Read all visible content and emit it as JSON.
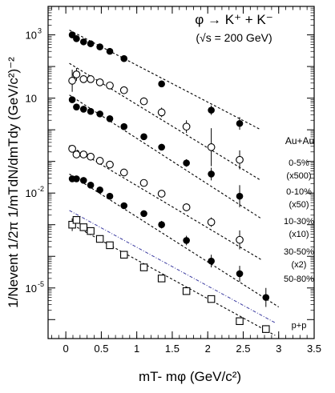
{
  "chart_data": {
    "type": "scatter",
    "title": "φ → K⁺ + K⁻",
    "subtitle": "(√s = 200 GeV)",
    "xlabel": "mT- mφ (GeV/c²)",
    "ylabel": "1/Nevent 1/2π 1/mTdN/dmTdy (GeV/c²)⁻²",
    "xlim": [
      -0.25,
      3.5
    ],
    "ylim_log10": [
      -6.6,
      3.9
    ],
    "yscale": "log",
    "grid": false,
    "x_ticks": [
      "0",
      "0.5",
      "1",
      "1.5",
      "2",
      "2.5",
      "3",
      "3.5"
    ],
    "y_ticks": [
      {
        "base": "10",
        "exp": "3",
        "log10": 3
      },
      {
        "base": "10",
        "exp": "",
        "log10": 1
      },
      {
        "base": "10",
        "exp": "-2",
        "log10": -2
      },
      {
        "base": "10",
        "exp": "-5",
        "log10": -5
      }
    ],
    "legend_header": "Au+Au",
    "series": [
      {
        "name": "0-5%",
        "scale": "(x500)",
        "marker": "filled-circle",
        "fit_color": "#000000",
        "x": [
          0.09,
          0.15,
          0.25,
          0.35,
          0.48,
          0.62,
          0.82,
          1.35,
          2.05,
          2.45
        ],
        "log10_y": [
          3.0,
          2.88,
          2.78,
          2.72,
          2.62,
          2.48,
          2.25,
          1.45,
          0.62,
          0.2
        ],
        "log10_err": [
          0.05,
          0.05,
          0.05,
          0.05,
          0.05,
          0.05,
          0.06,
          0.1,
          0.15,
          0.2
        ],
        "fit_log10": [
          3.15,
          0.0
        ],
        "fit_x": [
          0.05,
          2.75
        ]
      },
      {
        "name": "0-10%",
        "scale": "(x50)",
        "marker": "open-circle",
        "fit_color": "#000000",
        "x": [
          0.09,
          0.15,
          0.25,
          0.35,
          0.48,
          0.62,
          0.82,
          1.1,
          1.35,
          1.7,
          2.05,
          2.45
        ],
        "log10_y": [
          1.55,
          1.75,
          1.6,
          1.6,
          1.5,
          1.4,
          1.25,
          0.9,
          0.55,
          0.1,
          -0.55,
          -0.95
        ],
        "log10_err": [
          0.35,
          0.2,
          0.12,
          0.1,
          0.1,
          0.1,
          0.1,
          0.12,
          0.15,
          0.2,
          0.6,
          0.3
        ],
        "fit_log10": [
          2.1,
          -1.6
        ],
        "fit_x": [
          0.05,
          2.75
        ]
      },
      {
        "name": "10-30%",
        "scale": "(x10)",
        "marker": "filled-circle",
        "fit_color": "#000000",
        "x": [
          0.09,
          0.15,
          0.25,
          0.35,
          0.48,
          0.62,
          0.82,
          1.1,
          1.35,
          1.7,
          2.05,
          2.45
        ],
        "log10_y": [
          0.95,
          0.72,
          0.65,
          0.58,
          0.5,
          0.35,
          0.1,
          -0.22,
          -0.55,
          -1.05,
          -1.4,
          -2.1
        ],
        "log10_err": [
          0.08,
          0.06,
          0.06,
          0.06,
          0.06,
          0.06,
          0.07,
          0.08,
          0.1,
          0.12,
          0.2,
          0.35
        ],
        "fit_log10": [
          1.1,
          -2.8
        ],
        "fit_x": [
          0.05,
          2.75
        ]
      },
      {
        "name": "30-50%",
        "scale": "(x2)",
        "marker": "open-circle",
        "fit_color": "#000000",
        "x": [
          0.09,
          0.15,
          0.25,
          0.35,
          0.48,
          0.62,
          0.82,
          1.1,
          1.35,
          1.7,
          2.05,
          2.45
        ],
        "log10_y": [
          -0.6,
          -0.78,
          -0.78,
          -0.85,
          -0.98,
          -1.1,
          -1.35,
          -1.68,
          -2.02,
          -2.45,
          -2.92,
          -3.48
        ],
        "log10_err": [
          0.1,
          0.08,
          0.08,
          0.08,
          0.08,
          0.08,
          0.08,
          0.1,
          0.1,
          0.12,
          0.15,
          0.3
        ],
        "fit_log10": [
          -0.5,
          -4.1
        ],
        "fit_x": [
          0.05,
          2.75
        ]
      },
      {
        "name": "50-80%",
        "scale": "",
        "marker": "filled-circle",
        "fit_color": "#000000",
        "x": [
          0.09,
          0.15,
          0.25,
          0.35,
          0.48,
          0.62,
          0.82,
          1.1,
          1.35,
          1.7,
          2.05,
          2.45,
          2.82
        ],
        "log10_y": [
          -1.55,
          -1.55,
          -1.6,
          -1.75,
          -1.9,
          -2.1,
          -2.4,
          -2.65,
          -3.0,
          -3.5,
          -4.15,
          -4.55,
          -5.3
        ],
        "log10_err": [
          0.08,
          0.08,
          0.08,
          0.08,
          0.08,
          0.08,
          0.08,
          0.1,
          0.12,
          0.15,
          0.2,
          0.25,
          0.3
        ],
        "fit_log10": [
          -1.4,
          -5.6
        ],
        "fit_x": [
          0.05,
          3.0
        ]
      },
      {
        "name": "p+p",
        "scale": "",
        "marker": "open-square",
        "fit_color": "#000000",
        "x": [
          0.09,
          0.15,
          0.25,
          0.35,
          0.48,
          0.62,
          0.82,
          1.1,
          1.35,
          1.7,
          2.05,
          2.45,
          2.82
        ],
        "log10_y": [
          -3.0,
          -2.85,
          -3.08,
          -3.2,
          -3.45,
          -3.65,
          -3.95,
          -4.35,
          -4.7,
          -5.1,
          -5.35,
          -6.05,
          -6.3
        ],
        "log10_err": [
          0.2,
          0.1,
          0.08,
          0.08,
          0.08,
          0.08,
          0.08,
          0.08,
          0.08,
          0.08,
          0.1,
          0.1,
          0.12
        ],
        "fit_log10": [
          -2.95,
          -6.5
        ],
        "fit_x": [
          0.05,
          2.95
        ],
        "fit2_color": "#3a3aa0",
        "fit2_log10": [
          -2.55,
          -6.1
        ],
        "fit2_x": [
          0.05,
          2.95
        ]
      }
    ]
  }
}
